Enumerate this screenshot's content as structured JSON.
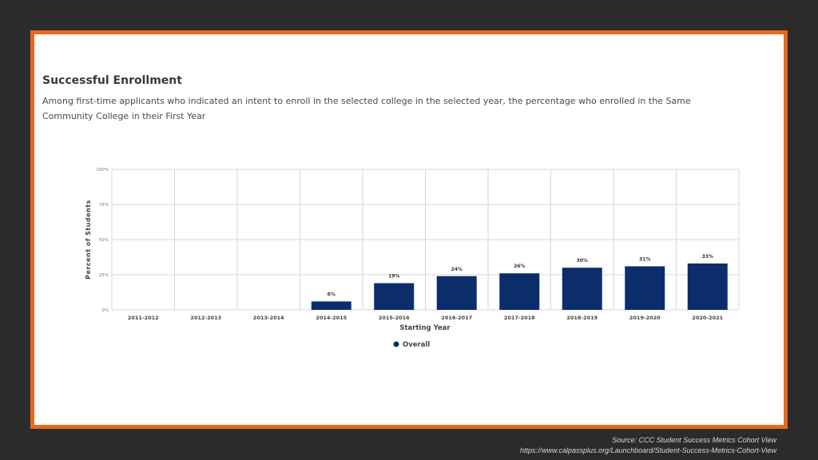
{
  "chart_data": {
    "type": "bar",
    "title": "Successful Enrollment",
    "subtitle": "Among first-time applicants who indicated an intent to enroll in the selected college in the selected year, the percentage who enrolled in the Same Community College in their First Year",
    "xlabel": "Starting Year",
    "ylabel": "Percent of Students",
    "ylim": [
      0,
      100
    ],
    "yticks": [
      {
        "value": 0,
        "label": "0%"
      },
      {
        "value": 25,
        "label": "25%"
      },
      {
        "value": 50,
        "label": "50%"
      },
      {
        "value": 75,
        "label": "75%"
      },
      {
        "value": 100,
        "label": "100%"
      }
    ],
    "categories": [
      "2011-2012",
      "2012-2013",
      "2013-2014",
      "2014-2015",
      "2015-2016",
      "2016-2017",
      "2017-2018",
      "2018-2019",
      "2019-2020",
      "2020-2021"
    ],
    "series": [
      {
        "name": "Overall",
        "values": [
          null,
          null,
          null,
          6,
          19,
          24,
          26,
          30,
          31,
          33
        ],
        "labels": [
          "",
          "",
          "",
          "6%",
          "19%",
          "24%",
          "26%",
          "30%",
          "31%",
          "33%"
        ],
        "color": "#0b2e6b"
      }
    ],
    "grid": true,
    "legend_position": "bottom-left"
  },
  "source": {
    "line1": "Source:  CCC Student Success Metrics Cohort View",
    "line2": "https://www.calpassplus.org/Launchboard/Student-Success-Metrics-Cohort-View"
  },
  "colors": {
    "frame_border": "#e8691c",
    "background": "#2b2b2b",
    "bar": "#0b2e6b"
  }
}
